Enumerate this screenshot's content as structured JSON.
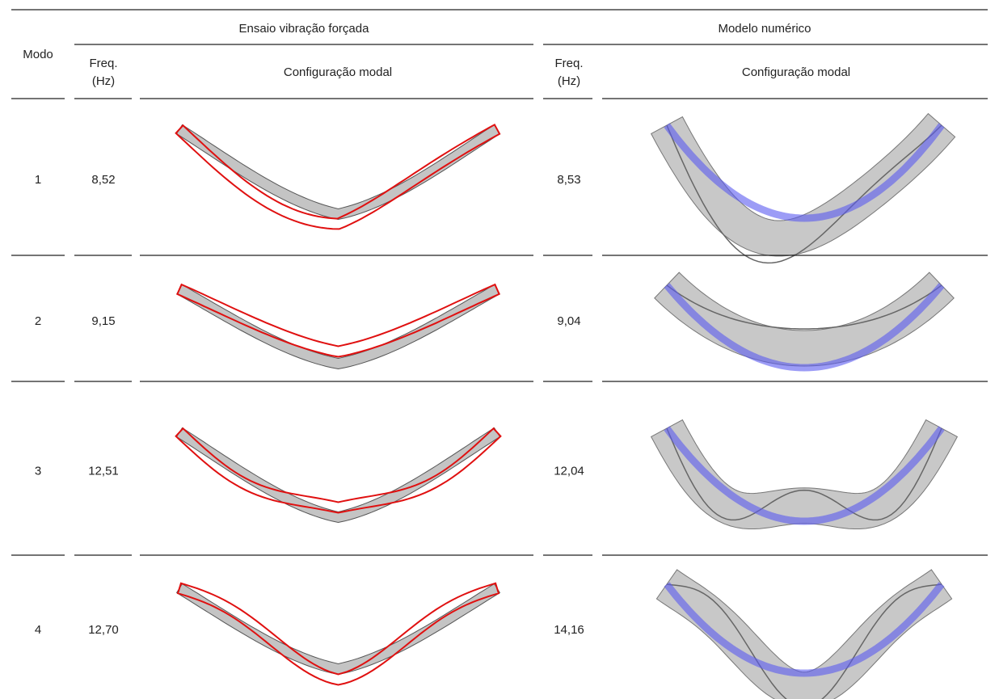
{
  "header": {
    "mode": "Modo",
    "experimental": {
      "title": "Ensaio vibração forçada",
      "freq": [
        "Freq.",
        "(Hz)"
      ],
      "shape": "Configuração modal"
    },
    "numerical": {
      "title": "Modelo numérico",
      "freq": [
        "Freq.",
        "(Hz)"
      ],
      "shape": "Configuração modal"
    }
  },
  "table": {
    "rows": [
      [
        "1",
        "8,52",
        "8,53"
      ],
      [
        "2",
        "9,15",
        "9,04"
      ],
      [
        "3",
        "12,51",
        "12,04"
      ],
      [
        "4",
        "12,70",
        "14,16"
      ]
    ]
  }
}
